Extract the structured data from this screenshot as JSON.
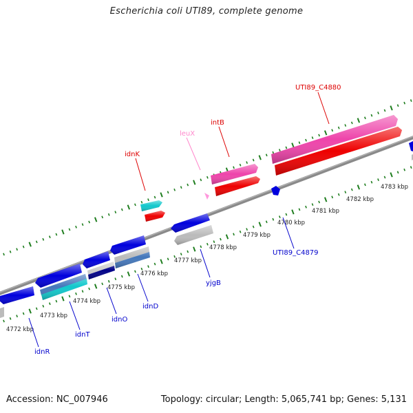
{
  "title": "Escherichia coli UTI89, complete genome",
  "footer": {
    "accession": "Accession: NC_007946",
    "summary": "Topology: circular; Length: 5,065,741 bp; Genes: 5,131"
  },
  "colors": {
    "backbone": "#8a8a8a",
    "tick": "#1e7d1e",
    "forward_label": "#dd0000",
    "reverse_label": "#0000cc",
    "trna_label": "#ff88cc"
  },
  "scale": {
    "labels": [
      "4772 kbp",
      "4773 kbp",
      "4774 kbp",
      "4775 kbp",
      "4776 kbp",
      "4777 kbp",
      "4778 kbp",
      "4779 kbp",
      "4780 kbp",
      "4781 kbp",
      "4782 kbp",
      "4783 kbp"
    ]
  },
  "forward_labels": [
    "idnK",
    "leuX",
    "intB",
    "UTI89_C4880"
  ],
  "reverse_labels": [
    "idnR",
    "idnT",
    "idnO",
    "idnD",
    "yjgB",
    "UTI89_C4879"
  ]
}
